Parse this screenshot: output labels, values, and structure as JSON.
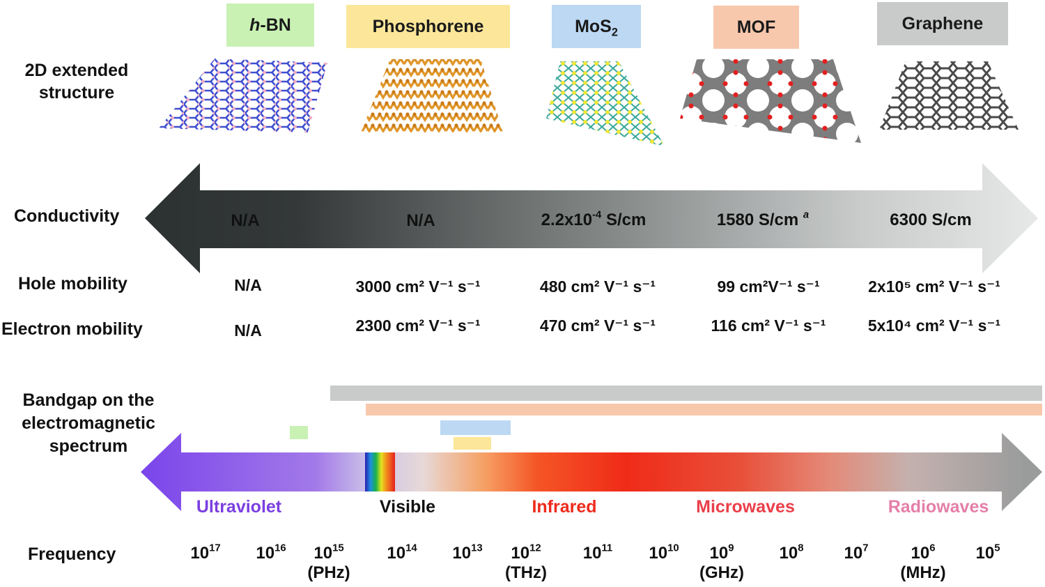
{
  "materials": [
    {
      "id": "hbn",
      "label_italic": "h",
      "label_rest": "-BN",
      "color": "#c9f1b4"
    },
    {
      "id": "phosphorene",
      "label": "Phosphorene",
      "color": "#fbe699"
    },
    {
      "id": "mos2",
      "label": "MoS",
      "label_sub": "2",
      "color": "#bcd8f3"
    },
    {
      "id": "mof",
      "label": "MOF",
      "color": "#f8c8ad"
    },
    {
      "id": "graphene",
      "label": "Graphene",
      "color": "#c9cbca"
    }
  ],
  "row_labels": {
    "structure": "2D extended structure",
    "conductivity": "Conductivity",
    "hole_mobility": "Hole mobility",
    "electron_mobility": "Electron mobility",
    "bandgap": "Bandgap on the electromagnetic spectrum",
    "frequency": "Frequency"
  },
  "conductivity": {
    "hbn": "N/A",
    "phosphorene": "N/A",
    "mos2_base": "2.2x10",
    "mos2_exp": "-4",
    "mos2_unit": " S/cm",
    "mof": "1580 S/cm",
    "mof_note": "a",
    "graphene": "6300 S/cm"
  },
  "hole_mobility": {
    "hbn": "N/A",
    "phosphorene": "3000 cm² V⁻¹ s⁻¹",
    "mos2": "480 cm² V⁻¹ s⁻¹",
    "mof": "99 cm²V⁻¹ s⁻¹",
    "graphene": "2x10⁵ cm² V⁻¹ s⁻¹"
  },
  "electron_mobility": {
    "hbn": "N/A",
    "phosphorene": "2300 cm² V⁻¹ s⁻¹",
    "mos2": "470 cm² V⁻¹ s⁻¹",
    "mof": "116 cm² V⁻¹ s⁻¹",
    "graphene": "5x10⁴ cm² V⁻¹ s⁻¹"
  },
  "spectrum_bands": {
    "ultraviolet": {
      "label": "Ultraviolet",
      "color": "#7b3fe0"
    },
    "visible": {
      "label": "Visible",
      "color": "#111111"
    },
    "infrared": {
      "label": "Infrared",
      "color": "#ee2a1c"
    },
    "microwaves": {
      "label": "Microwaves",
      "color": "#ea3f4a"
    },
    "radiowaves": {
      "label": "Radiowaves",
      "color": "#e47fa8"
    }
  },
  "frequency_ticks": [
    {
      "base": "10",
      "exp": "17",
      "unit": ""
    },
    {
      "base": "10",
      "exp": "16",
      "unit": ""
    },
    {
      "base": "10",
      "exp": "15",
      "unit": "(PHz)"
    },
    {
      "base": "10",
      "exp": "14",
      "unit": ""
    },
    {
      "base": "10",
      "exp": "13",
      "unit": ""
    },
    {
      "base": "10",
      "exp": "12",
      "unit": "(THz)"
    },
    {
      "base": "10",
      "exp": "11",
      "unit": ""
    },
    {
      "base": "10",
      "exp": "10",
      "unit": ""
    },
    {
      "base": "10",
      "exp": "9",
      "unit": "(GHz)"
    },
    {
      "base": "10",
      "exp": "8",
      "unit": ""
    },
    {
      "base": "10",
      "exp": "7",
      "unit": ""
    },
    {
      "base": "10",
      "exp": "6",
      "unit": "(MHz)"
    },
    {
      "base": "10",
      "exp": "5",
      "unit": ""
    }
  ]
}
